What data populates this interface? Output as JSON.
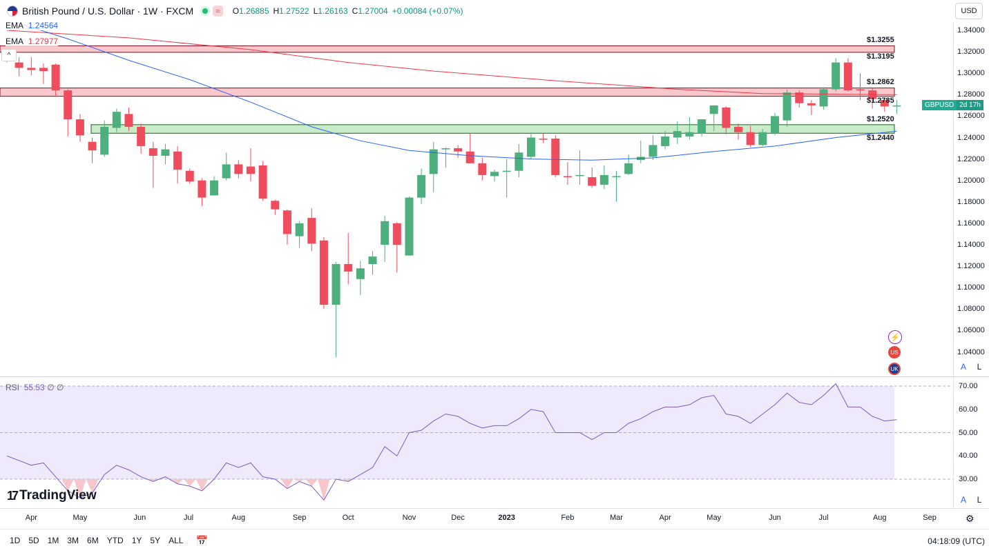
{
  "header": {
    "symbol_title": "British Pound / U.S. Dollar · 1W · FXCM",
    "badge": "≈",
    "ohlc": [
      {
        "label": "O",
        "value": "1.26885"
      },
      {
        "label": "H",
        "value": "1.27522"
      },
      {
        "label": "L",
        "value": "1.26163"
      },
      {
        "label": "C",
        "value": "1.27004"
      }
    ],
    "change": "+0.00084 (+0.07%)",
    "currency": "USD"
  },
  "indicators": {
    "ema1": {
      "name": "EMA",
      "value": "1.24564",
      "color": "#2962ff"
    },
    "ema2": {
      "name": "EMA",
      "value": "1.27977",
      "color": "#f23645"
    },
    "collapse": "^"
  },
  "levels": {
    "l1": "$1.3255",
    "l2": "$1.3195",
    "l3": "$1.2862",
    "l4": "$1.2785",
    "l5": "$1.2520",
    "l6": "$1.2440"
  },
  "last_price_tag": {
    "symbol": "GBPUSD",
    "time": "2d 17h"
  },
  "price_axis": [
    "1.34000",
    "1.32000",
    "1.30000",
    "1.28000",
    "1.26000",
    "1.24000",
    "1.22000",
    "1.20000",
    "1.18000",
    "1.16000",
    "1.14000",
    "1.12000",
    "1.10000",
    "1.08000",
    "1.06000",
    "1.04000"
  ],
  "rsi": {
    "name": "RSI",
    "value": "55.53",
    "extra1": "∅",
    "extra2": "∅",
    "axis": [
      "70.00",
      "60.00",
      "50.00",
      "40.00",
      "30.00"
    ]
  },
  "time_axis": [
    "Apr",
    "May",
    "Jun",
    "Jul",
    "Aug",
    "Sep",
    "Oct",
    "Nov",
    "Dec",
    "2023",
    "Feb",
    "Mar",
    "Apr",
    "May",
    "Jun",
    "Jul",
    "Aug",
    "Sep"
  ],
  "scale_buttons": {
    "auto": "A",
    "log": "L"
  },
  "logo_text": "TradingView",
  "bottom_bar": {
    "ranges": [
      "1D",
      "5D",
      "1M",
      "3M",
      "6M",
      "YTD",
      "1Y",
      "5Y",
      "ALL"
    ],
    "clock": "04:18:09 (UTC)"
  },
  "colors": {
    "up": "#4caf7d",
    "down": "#ef4d5d",
    "support_zone": "#c8ecc8",
    "resistance_zone": "#f8c8cc",
    "rsi_line": "#7e57c2"
  },
  "chart_data": {
    "type": "candlestick",
    "title": "British Pound / U.S. Dollar · 1W · FXCM",
    "ylim": [
      1.03,
      1.345
    ],
    "series": [
      {
        "o": 1.317,
        "h": 1.32,
        "l": 1.31,
        "c": 1.318
      },
      {
        "o": 1.31,
        "h": 1.315,
        "l": 1.297,
        "c": 1.305
      },
      {
        "o": 1.305,
        "h": 1.315,
        "l": 1.298,
        "c": 1.303
      },
      {
        "o": 1.305,
        "h": 1.309,
        "l": 1.29,
        "c": 1.302
      },
      {
        "o": 1.308,
        "h": 1.309,
        "l": 1.278,
        "c": 1.284
      },
      {
        "o": 1.284,
        "h": 1.285,
        "l": 1.241,
        "c": 1.257
      },
      {
        "o": 1.257,
        "h": 1.262,
        "l": 1.236,
        "c": 1.242
      },
      {
        "o": 1.236,
        "h": 1.24,
        "l": 1.216,
        "c": 1.228
      },
      {
        "o": 1.224,
        "h": 1.256,
        "l": 1.222,
        "c": 1.25
      },
      {
        "o": 1.249,
        "h": 1.267,
        "l": 1.245,
        "c": 1.264
      },
      {
        "o": 1.262,
        "h": 1.268,
        "l": 1.246,
        "c": 1.25
      },
      {
        "o": 1.25,
        "h": 1.253,
        "l": 1.225,
        "c": 1.232
      },
      {
        "o": 1.23,
        "h": 1.236,
        "l": 1.193,
        "c": 1.223
      },
      {
        "o": 1.223,
        "h": 1.234,
        "l": 1.215,
        "c": 1.229
      },
      {
        "o": 1.227,
        "h": 1.232,
        "l": 1.197,
        "c": 1.21
      },
      {
        "o": 1.209,
        "h": 1.211,
        "l": 1.197,
        "c": 1.199
      },
      {
        "o": 1.2,
        "h": 1.202,
        "l": 1.176,
        "c": 1.184
      },
      {
        "o": 1.186,
        "h": 1.204,
        "l": 1.186,
        "c": 1.2
      },
      {
        "o": 1.202,
        "h": 1.226,
        "l": 1.2,
        "c": 1.215
      },
      {
        "o": 1.215,
        "h": 1.219,
        "l": 1.202,
        "c": 1.206
      },
      {
        "o": 1.213,
        "h": 1.23,
        "l": 1.199,
        "c": 1.206
      },
      {
        "o": 1.214,
        "h": 1.218,
        "l": 1.181,
        "c": 1.183
      },
      {
        "o": 1.181,
        "h": 1.182,
        "l": 1.168,
        "c": 1.173
      },
      {
        "o": 1.172,
        "h": 1.173,
        "l": 1.14,
        "c": 1.15
      },
      {
        "o": 1.148,
        "h": 1.162,
        "l": 1.137,
        "c": 1.16
      },
      {
        "o": 1.165,
        "h": 1.174,
        "l": 1.134,
        "c": 1.141
      },
      {
        "o": 1.144,
        "h": 1.147,
        "l": 1.08,
        "c": 1.084
      },
      {
        "o": 1.084,
        "h": 1.124,
        "l": 1.035,
        "c": 1.122
      },
      {
        "o": 1.122,
        "h": 1.151,
        "l": 1.103,
        "c": 1.115
      },
      {
        "o": 1.108,
        "h": 1.125,
        "l": 1.093,
        "c": 1.118
      },
      {
        "o": 1.122,
        "h": 1.134,
        "l": 1.112,
        "c": 1.129
      },
      {
        "o": 1.14,
        "h": 1.167,
        "l": 1.124,
        "c": 1.162
      },
      {
        "o": 1.16,
        "h": 1.161,
        "l": 1.114,
        "c": 1.14
      },
      {
        "o": 1.13,
        "h": 1.185,
        "l": 1.13,
        "c": 1.184
      },
      {
        "o": 1.184,
        "h": 1.211,
        "l": 1.178,
        "c": 1.205
      },
      {
        "o": 1.206,
        "h": 1.236,
        "l": 1.189,
        "c": 1.229
      },
      {
        "o": 1.229,
        "h": 1.231,
        "l": 1.212,
        "c": 1.23
      },
      {
        "o": 1.23,
        "h": 1.233,
        "l": 1.221,
        "c": 1.227
      },
      {
        "o": 1.227,
        "h": 1.244,
        "l": 1.219,
        "c": 1.216
      },
      {
        "o": 1.216,
        "h": 1.221,
        "l": 1.2,
        "c": 1.205
      },
      {
        "o": 1.204,
        "h": 1.21,
        "l": 1.199,
        "c": 1.208
      },
      {
        "o": 1.208,
        "h": 1.22,
        "l": 1.184,
        "c": 1.209
      },
      {
        "o": 1.209,
        "h": 1.234,
        "l": 1.203,
        "c": 1.226
      },
      {
        "o": 1.222,
        "h": 1.245,
        "l": 1.22,
        "c": 1.24
      },
      {
        "o": 1.239,
        "h": 1.244,
        "l": 1.235,
        "c": 1.238
      },
      {
        "o": 1.239,
        "h": 1.242,
        "l": 1.203,
        "c": 1.205
      },
      {
        "o": 1.204,
        "h": 1.217,
        "l": 1.196,
        "c": 1.203
      },
      {
        "o": 1.204,
        "h": 1.228,
        "l": 1.196,
        "c": 1.205
      },
      {
        "o": 1.203,
        "h": 1.212,
        "l": 1.193,
        "c": 1.195
      },
      {
        "o": 1.196,
        "h": 1.214,
        "l": 1.192,
        "c": 1.205
      },
      {
        "o": 1.203,
        "h": 1.209,
        "l": 1.18,
        "c": 1.204
      },
      {
        "o": 1.206,
        "h": 1.224,
        "l": 1.205,
        "c": 1.216
      },
      {
        "o": 1.219,
        "h": 1.237,
        "l": 1.216,
        "c": 1.222
      },
      {
        "o": 1.222,
        "h": 1.242,
        "l": 1.219,
        "c": 1.233
      },
      {
        "o": 1.232,
        "h": 1.246,
        "l": 1.229,
        "c": 1.241
      },
      {
        "o": 1.24,
        "h": 1.255,
        "l": 1.234,
        "c": 1.246
      },
      {
        "o": 1.241,
        "h": 1.259,
        "l": 1.238,
        "c": 1.245
      },
      {
        "o": 1.244,
        "h": 1.257,
        "l": 1.241,
        "c": 1.257
      },
      {
        "o": 1.262,
        "h": 1.268,
        "l": 1.246,
        "c": 1.27
      },
      {
        "o": 1.268,
        "h": 1.269,
        "l": 1.243,
        "c": 1.249
      },
      {
        "o": 1.25,
        "h": 1.253,
        "l": 1.238,
        "c": 1.245
      },
      {
        "o": 1.245,
        "h": 1.251,
        "l": 1.231,
        "c": 1.233
      },
      {
        "o": 1.233,
        "h": 1.248,
        "l": 1.232,
        "c": 1.245
      },
      {
        "o": 1.244,
        "h": 1.263,
        "l": 1.242,
        "c": 1.26
      },
      {
        "o": 1.256,
        "h": 1.285,
        "l": 1.25,
        "c": 1.282
      },
      {
        "o": 1.282,
        "h": 1.284,
        "l": 1.268,
        "c": 1.272
      },
      {
        "o": 1.272,
        "h": 1.275,
        "l": 1.261,
        "c": 1.27
      },
      {
        "o": 1.269,
        "h": 1.287,
        "l": 1.266,
        "c": 1.285
      },
      {
        "o": 1.285,
        "h": 1.314,
        "l": 1.283,
        "c": 1.31
      },
      {
        "o": 1.31,
        "h": 1.314,
        "l": 1.283,
        "c": 1.284
      },
      {
        "o": 1.285,
        "h": 1.3,
        "l": 1.275,
        "c": 1.284
      },
      {
        "o": 1.284,
        "h": 1.286,
        "l": 1.267,
        "c": 1.276
      },
      {
        "o": 1.275,
        "h": 1.277,
        "l": 1.264,
        "c": 1.269
      },
      {
        "o": 1.269,
        "h": 1.275,
        "l": 1.262,
        "c": 1.27
      }
    ],
    "ema_fast_points": [
      [
        0,
        1.35
      ],
      [
        5,
        1.332
      ],
      [
        10,
        1.312
      ],
      [
        15,
        1.294
      ],
      [
        20,
        1.273
      ],
      [
        25,
        1.25
      ],
      [
        29,
        1.237
      ],
      [
        33,
        1.228
      ],
      [
        38,
        1.223
      ],
      [
        43,
        1.22
      ],
      [
        48,
        1.219
      ],
      [
        53,
        1.221
      ],
      [
        58,
        1.227
      ],
      [
        63,
        1.232
      ],
      [
        68,
        1.24
      ],
      [
        73,
        1.246
      ]
    ],
    "ema_slow_points": [
      [
        0,
        1.34
      ],
      [
        10,
        1.333
      ],
      [
        20,
        1.322
      ],
      [
        28,
        1.31
      ],
      [
        35,
        1.302
      ],
      [
        45,
        1.293
      ],
      [
        55,
        1.285
      ],
      [
        62,
        1.281
      ],
      [
        73,
        1.28
      ]
    ],
    "zones": [
      {
        "name": "resistance-upper",
        "from": 1.3195,
        "to": 1.3255
      },
      {
        "name": "resistance-lower",
        "from": 1.2785,
        "to": 1.2862
      },
      {
        "name": "support",
        "from": 1.244,
        "to": 1.252
      }
    ],
    "rsi_values": [
      40,
      38,
      36,
      37,
      31,
      25,
      22,
      24,
      32,
      36,
      34,
      31,
      29,
      31,
      28,
      27,
      25,
      30,
      37,
      35,
      37,
      31,
      30,
      26,
      29,
      27,
      21,
      30,
      29,
      32,
      35,
      44,
      40,
      50,
      51,
      55,
      58,
      57,
      54,
      52,
      53,
      53,
      56,
      60,
      59,
      50,
      50,
      50,
      47,
      50,
      50,
      54,
      56,
      59,
      61,
      61,
      62,
      65,
      66,
      58,
      57,
      54,
      58,
      62,
      67,
      63,
      62,
      66,
      71,
      61,
      61,
      57,
      55,
      55.53
    ],
    "rsi_ylim": [
      20,
      72
    ]
  }
}
